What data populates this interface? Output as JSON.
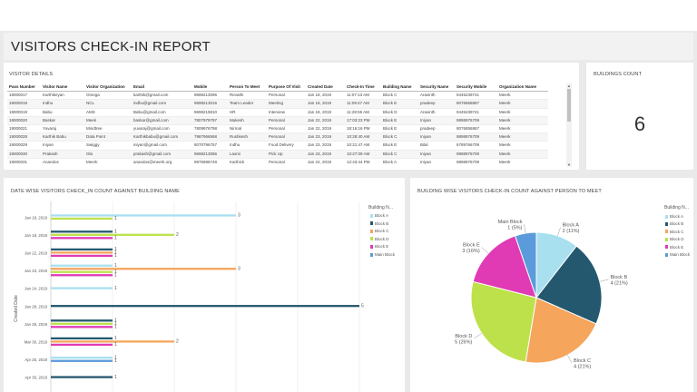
{
  "page": {
    "title": "VISITORS CHECK-IN REPORT"
  },
  "visitor_details": {
    "title": "VISITOR DETAILS",
    "columns": [
      "Pass Number",
      "Visitor Name",
      "Visitor Organization",
      "Email",
      "Mobile",
      "Person To Meet",
      "Purpose Of Visit",
      "Created Date",
      "Check-In Time",
      "Building Name",
      "Security Name",
      "Security Mobile",
      "Organization Name"
    ],
    "rows": [
      [
        "19000017",
        "Karthikeyan",
        "Omega",
        "karthik@gmail.com",
        "9698213096",
        "Revathi",
        "Personal",
        "Jan 18, 2019",
        "11:07:13 AM",
        "Block C",
        "Aravinth",
        "9445239741",
        "Meerk"
      ],
      [
        "19000018",
        "Indhu",
        "NCL",
        "indhu@gmail.com",
        "9698213016",
        "Team Leader",
        "Meeting",
        "Jan 18, 2019",
        "11:09:47 AM",
        "Block E",
        "pradeep",
        "8076856867",
        "Meerk"
      ],
      [
        "19000019",
        "Babu",
        "AMS",
        "Babu@gmail.com",
        "9698219810",
        "HR",
        "Interview",
        "Jan 18, 2019",
        "11:29:55 AM",
        "Block D",
        "Aravinth",
        "9445239741",
        "Meerk"
      ],
      [
        "19000020",
        "Baskar",
        "Meek",
        "baskar@gmail.com",
        "7807979797",
        "Mukesh",
        "Personal",
        "Jan 22, 2019",
        "17:03:23 PM",
        "Block E",
        "Iniyan",
        "9898976709",
        "Meerk"
      ],
      [
        "19000021",
        "Yuvaraj",
        "Mindtree",
        "yuvaraj@gmail.com",
        "7809976798",
        "Nirmal",
        "Personal",
        "Jan 22, 2019",
        "18:16:16 PM",
        "Block E",
        "pradeep",
        "8076856867",
        "Meerk"
      ],
      [
        "19000028",
        "Karthik Babu",
        "Data Point",
        "Karthikbabu@gmail.com",
        "7987966568",
        "Rushkesh",
        "Personal",
        "Jan 23, 2019",
        "10:28:40 AM",
        "Block C",
        "Iniyan",
        "9898976709",
        "Meerk"
      ],
      [
        "19000029",
        "Iniyan",
        "Swiggy",
        "iniyan@gmail.com",
        "8070796757",
        "Indhu",
        "Food Delivery",
        "Jan 23, 2019",
        "10:21:47 AM",
        "Block E",
        "Bilal",
        "6789766709",
        "Meerk"
      ],
      [
        "19000030",
        "Prakash",
        "Ola",
        "prakash@gmail.com",
        "9698213056",
        "Laxmi",
        "Pick Up",
        "Jan 23, 2019",
        "10:27:09 AM",
        "Block C",
        "Iniyan",
        "9898976709",
        "Meerk"
      ],
      [
        "19000031",
        "Anandos",
        "Meerk",
        "anandos@meerk.org",
        "9976896748",
        "Karthick",
        "Personal",
        "Jan 24, 2019",
        "12:43:44 PM",
        "Block A",
        "Iniyan",
        "9898976709",
        "Meerk"
      ]
    ]
  },
  "buildings_count": {
    "title": "BUILDINGS COUNT",
    "value": "6"
  },
  "bar_chart": {
    "title": "DATE WISE VISITORS CHECK_IN COUNT AGAINST BUILDING NAME",
    "legend_title": "Building N...",
    "ylabel": "Created Date",
    "chart_data": {
      "type": "bar",
      "orientation": "horizontal",
      "categories": [
        "Jan 18, 2019",
        "Jan 18, 2019",
        "Jan 22, 2019",
        "Jan 23, 2019",
        "Jan 24, 2019",
        "Jan 28, 2019",
        "Jan 29, 2019",
        "Mar 30, 2019",
        "Apr 25, 2019",
        "Apr 30, 2019"
      ],
      "xlim": [
        0,
        5
      ],
      "series": [
        {
          "name": "Block A",
          "color": "#a8e0ef",
          "values": [
            3,
            0,
            0,
            1,
            1,
            0,
            0,
            0,
            1,
            0
          ]
        },
        {
          "name": "Block B",
          "color": "#24586e",
          "values": [
            0,
            1,
            1,
            0,
            0,
            5,
            1,
            1,
            0,
            1
          ]
        },
        {
          "name": "Block C",
          "color": "#f5a55c",
          "values": [
            0,
            0,
            1,
            3,
            0,
            0,
            0,
            2,
            0,
            0
          ]
        },
        {
          "name": "Block D",
          "color": "#bde14a",
          "values": [
            1,
            2,
            0,
            1,
            0,
            0,
            1,
            0,
            0,
            0
          ]
        },
        {
          "name": "Block E",
          "color": "#e03bb5",
          "values": [
            0,
            1,
            1,
            1,
            0,
            0,
            1,
            1,
            0,
            0
          ]
        },
        {
          "name": "Main Block",
          "color": "#5b9bdc",
          "values": [
            0,
            0,
            0,
            0,
            0,
            0,
            0,
            0,
            1,
            0
          ]
        }
      ]
    }
  },
  "pie_chart": {
    "title": "BUILDING WISE VISITORS CHECK-IN COUNT AGAINST PERSON TO MEET",
    "legend_title": "Building N...",
    "chart_data": {
      "type": "pie",
      "slices": [
        {
          "name": "Block A",
          "value": 2,
          "label": "Block A",
          "pct": "2 (11%)",
          "color": "#a8e0ef"
        },
        {
          "name": "Block B",
          "value": 4,
          "label": "Block B",
          "pct": "4 (21%)",
          "color": "#24586e"
        },
        {
          "name": "Block C",
          "value": 4,
          "label": "Block C",
          "pct": "4 (21%)",
          "color": "#f5a55c"
        },
        {
          "name": "Block D",
          "value": 5,
          "label": "Block D",
          "pct": "5 (26%)",
          "color": "#bde14a"
        },
        {
          "name": "Block E",
          "value": 3,
          "label": "Block E",
          "pct": "3 (16%)",
          "color": "#e03bb5"
        },
        {
          "name": "Main Block",
          "value": 1,
          "label": "Main Block",
          "pct": "1 (5%)",
          "color": "#5b9bdc"
        }
      ]
    }
  }
}
